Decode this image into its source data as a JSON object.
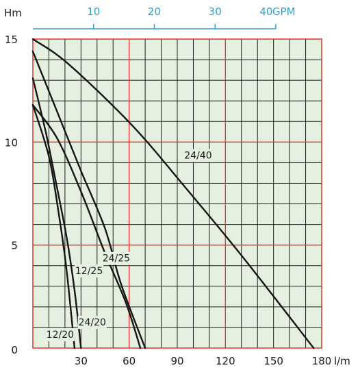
{
  "chart_data": {
    "type": "line",
    "title": "",
    "x_unit": "l/m",
    "y_unit": "Hm",
    "xlim": [
      0,
      180
    ],
    "ylim": [
      0,
      15
    ],
    "x_ticks": [
      {
        "value": 30,
        "label": "30"
      },
      {
        "value": 60,
        "label": "60"
      },
      {
        "value": 90,
        "label": "90"
      },
      {
        "value": 120,
        "label": "120"
      },
      {
        "value": 150,
        "label": "150"
      },
      {
        "value": 180,
        "label": "180"
      }
    ],
    "y_ticks": [
      {
        "value": 0,
        "label": "0"
      },
      {
        "value": 5,
        "label": "5"
      },
      {
        "value": 10,
        "label": "10"
      },
      {
        "value": 15,
        "label": "15"
      }
    ],
    "secondary_x_axis": {
      "unit": "GPM",
      "ticks": [
        {
          "value": 10,
          "label": "10"
        },
        {
          "value": 20,
          "label": "20"
        },
        {
          "value": 30,
          "label": "30"
        },
        {
          "value": 40,
          "label": "40"
        }
      ],
      "color": "#2aa3d8"
    },
    "grid": {
      "major_color": "#e8312b",
      "minor_color": "#1a1a1a",
      "background": "#e6f0e0"
    },
    "series": [
      {
        "name": "24/40",
        "points": [
          [
            0,
            15
          ],
          [
            22,
            13.8
          ],
          [
            62,
            10.8
          ],
          [
            95,
            7.8
          ],
          [
            130,
            4.5
          ],
          [
            175,
            0
          ]
        ]
      },
      {
        "name": "24/25",
        "points": [
          [
            0,
            14.4
          ],
          [
            15,
            11.5
          ],
          [
            30,
            8.6
          ],
          [
            45,
            5.8
          ],
          [
            55,
            3.1
          ],
          [
            70,
            0
          ]
        ]
      },
      {
        "name": "12/25",
        "points": [
          [
            0,
            11.8
          ],
          [
            15,
            10.2
          ],
          [
            30,
            7.6
          ],
          [
            45,
            4.6
          ],
          [
            58,
            2.2
          ],
          [
            67,
            0
          ]
        ]
      },
      {
        "name": "24/20",
        "points": [
          [
            0,
            13.1
          ],
          [
            8,
            10.5
          ],
          [
            14,
            8.2
          ],
          [
            21,
            5.4
          ],
          [
            26,
            2.8
          ],
          [
            30,
            0
          ]
        ]
      },
      {
        "name": "12/20",
        "points": [
          [
            0,
            11.8
          ],
          [
            10,
            9.3
          ],
          [
            16,
            6.6
          ],
          [
            21,
            3.8
          ],
          [
            26,
            0
          ]
        ]
      }
    ],
    "labels": [
      {
        "text": "24/40",
        "x": 103,
        "y": 9.2
      },
      {
        "text": "24/25",
        "x": 52,
        "y": 4.2
      },
      {
        "text": "12/25",
        "x": 35,
        "y": 3.6
      },
      {
        "text": "24/20",
        "x": 37,
        "y": 1.1
      },
      {
        "text": "12/20",
        "x": 17,
        "y": 0.5
      }
    ]
  }
}
